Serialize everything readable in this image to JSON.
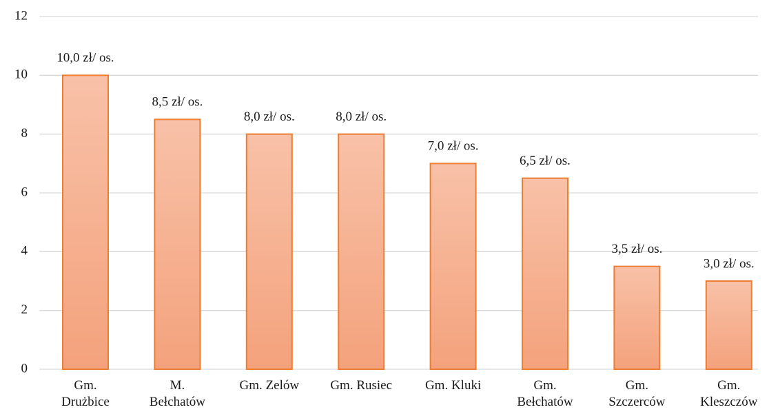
{
  "chart_data": {
    "type": "bar",
    "categories": [
      "Gm. Drużbice",
      "M. Bełchatów",
      "Gm. Zelów",
      "Gm. Rusiec",
      "Gm. Kluki",
      "Gm. Bełchatów",
      "Gm. Szczerców",
      "Gm. Kleszczów"
    ],
    "values": [
      10.0,
      8.5,
      8.0,
      8.0,
      7.0,
      6.5,
      3.5,
      3.0
    ],
    "value_labels": [
      "10,0 zł/ os.",
      "8,5 zł/ os.",
      "8,0 zł/ os.",
      "8,0 zł/ os.",
      "7,0 zł/ os.",
      "6,5 zł/ os.",
      "3,5 zł/ os.",
      "3,0 zł/ os."
    ],
    "color": "#ed7d31",
    "ylim": [
      0,
      12
    ],
    "yticks": [
      0,
      2,
      4,
      6,
      8,
      10,
      12
    ],
    "grid": true
  }
}
